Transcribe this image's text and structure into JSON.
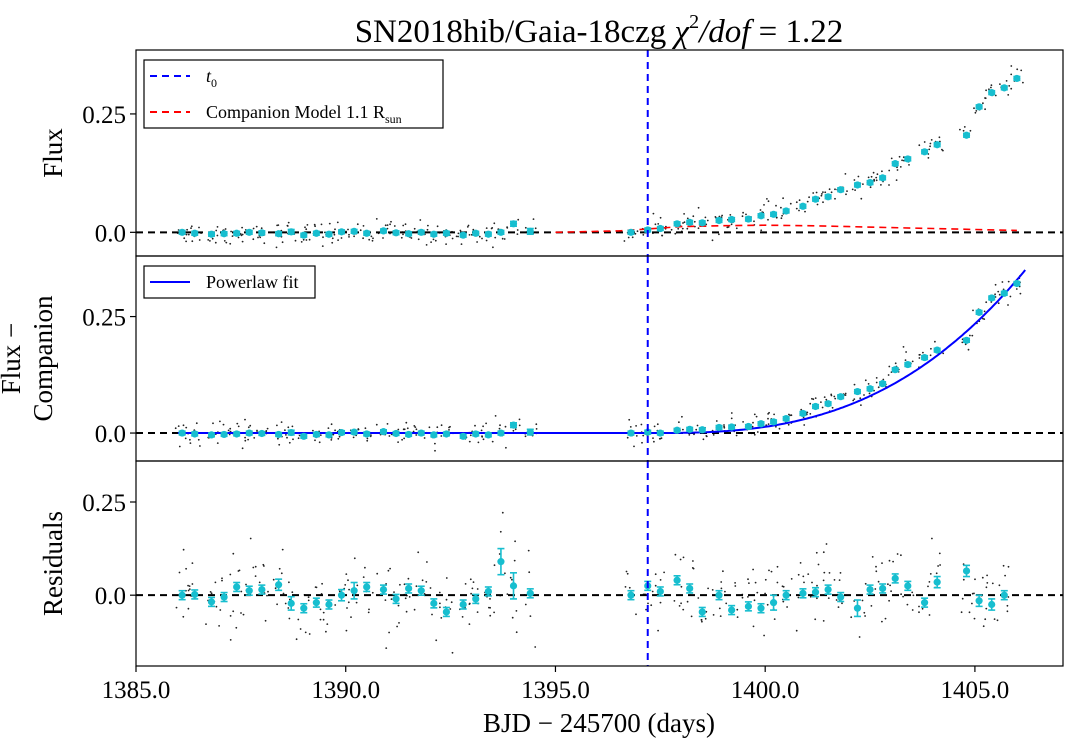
{
  "chart_data": {
    "type": "scatter",
    "title_main": "SN2018hib/Gaia-18czg  ",
    "title_chi": "χ",
    "title_sq": "2",
    "title_dof": "/dof",
    "title_eq": " = 1.22",
    "xlabel": "BJD − 245700 (days)",
    "xlim": [
      1385.0,
      1407.1
    ],
    "xticks": [
      1385.0,
      1390.0,
      1395.0,
      1400.0,
      1405.0
    ],
    "xtick_labels": [
      "1385.0",
      "1390.0",
      "1395.0",
      "1400.0",
      "1405.0"
    ],
    "t0": 1397.2,
    "panels": [
      {
        "id": "flux",
        "ylabel_lines": [
          "Flux"
        ],
        "ylim": [
          -0.05,
          0.385
        ],
        "yticks": [
          0.0,
          0.25
        ],
        "ytick_labels": [
          "0.0",
          "0.25"
        ],
        "legend": {
          "placement": "upper-left",
          "entries": [
            {
              "label": "t",
              "sub": "0",
              "color": "#0000ff",
              "style": "dashed"
            },
            {
              "label": "Companion Model  1.1  R",
              "sub": "sun",
              "color": "#ff0000",
              "style": "dashed"
            }
          ]
        },
        "binned": {
          "x": [
            1386.1,
            1386.4,
            1386.8,
            1387.1,
            1387.4,
            1387.7,
            1388.0,
            1388.4,
            1388.7,
            1389.0,
            1389.3,
            1389.6,
            1389.9,
            1390.2,
            1390.5,
            1390.9,
            1391.2,
            1391.5,
            1391.8,
            1392.1,
            1392.4,
            1392.8,
            1393.1,
            1393.4,
            1393.7,
            1394.0,
            1394.4,
            1396.8,
            1397.2,
            1397.5,
            1397.9,
            1398.2,
            1398.5,
            1398.9,
            1399.2,
            1399.6,
            1399.9,
            1400.2,
            1400.5,
            1400.9,
            1401.2,
            1401.5,
            1401.8,
            1402.2,
            1402.5,
            1402.8,
            1403.1,
            1403.4,
            1403.8,
            1404.1,
            1404.8,
            1405.1,
            1405.4,
            1405.7,
            1406.0
          ],
          "y": [
            0.0,
            -0.002,
            -0.004,
            -0.003,
            -0.002,
            0.0,
            -0.001,
            -0.003,
            0.001,
            -0.006,
            -0.002,
            -0.004,
            0.001,
            0.002,
            -0.002,
            0.003,
            -0.001,
            -0.003,
            0.0,
            -0.004,
            -0.002,
            -0.006,
            -0.002,
            -0.004,
            0.0,
            0.018,
            0.002,
            0.0,
            0.005,
            0.008,
            0.018,
            0.021,
            0.02,
            0.025,
            0.027,
            0.028,
            0.035,
            0.038,
            0.045,
            0.055,
            0.07,
            0.075,
            0.09,
            0.1,
            0.105,
            0.115,
            0.145,
            0.155,
            0.17,
            0.185,
            0.205,
            0.265,
            0.295,
            0.305,
            0.325
          ],
          "err": [
            0.004,
            0.004,
            0.004,
            0.004,
            0.004,
            0.004,
            0.004,
            0.004,
            0.005,
            0.004,
            0.004,
            0.004,
            0.004,
            0.004,
            0.004,
            0.004,
            0.004,
            0.004,
            0.004,
            0.004,
            0.004,
            0.004,
            0.004,
            0.004,
            0.004,
            0.005,
            0.006,
            0.004,
            0.004,
            0.004,
            0.004,
            0.004,
            0.004,
            0.004,
            0.004,
            0.004,
            0.004,
            0.004,
            0.004,
            0.004,
            0.004,
            0.004,
            0.004,
            0.004,
            0.004,
            0.004,
            0.004,
            0.004,
            0.004,
            0.004,
            0.004,
            0.004,
            0.004,
            0.004,
            0.004
          ]
        },
        "companion_model": {
          "x": [
            1395.0,
            1396.5,
            1397.2,
            1398.0,
            1399.0,
            1400.0,
            1401.0,
            1402.0,
            1403.0,
            1404.0,
            1405.0,
            1406.0
          ],
          "y": [
            0.0,
            0.003,
            0.007,
            0.012,
            0.014,
            0.015,
            0.014,
            0.012,
            0.01,
            0.008,
            0.006,
            0.004
          ]
        }
      },
      {
        "id": "flux_minus_companion",
        "ylabel_lines": [
          "Flux −",
          "Companion"
        ],
        "ylim": [
          -0.06,
          0.38
        ],
        "yticks": [
          0.0,
          0.25
        ],
        "ytick_labels": [
          "0.0",
          "0.25"
        ],
        "legend": {
          "placement": "upper-left",
          "entries": [
            {
              "label": "Powerlaw fit",
              "color": "#0000ff",
              "style": "solid"
            }
          ]
        },
        "binned": {
          "x": [
            1386.1,
            1386.4,
            1386.8,
            1387.1,
            1387.4,
            1387.7,
            1388.0,
            1388.4,
            1388.7,
            1389.0,
            1389.3,
            1389.6,
            1389.9,
            1390.2,
            1390.5,
            1390.9,
            1391.2,
            1391.5,
            1391.8,
            1392.1,
            1392.4,
            1392.8,
            1393.1,
            1393.4,
            1393.7,
            1394.0,
            1394.4,
            1396.8,
            1397.2,
            1397.5,
            1397.9,
            1398.2,
            1398.5,
            1398.9,
            1399.2,
            1399.6,
            1399.9,
            1400.2,
            1400.5,
            1400.9,
            1401.2,
            1401.5,
            1401.8,
            1402.2,
            1402.5,
            1402.8,
            1403.1,
            1403.4,
            1403.8,
            1404.1,
            1404.8,
            1405.1,
            1405.4,
            1405.7,
            1406.0
          ],
          "y": [
            0.0,
            -0.002,
            -0.004,
            -0.003,
            -0.002,
            0.0,
            -0.001,
            -0.003,
            0.001,
            -0.007,
            -0.003,
            -0.004,
            0.001,
            0.002,
            -0.002,
            0.003,
            -0.001,
            -0.003,
            0.0,
            -0.004,
            -0.002,
            -0.007,
            -0.002,
            -0.004,
            0.0,
            0.017,
            0.002,
            0.0,
            0.002,
            0.0,
            0.006,
            0.008,
            0.007,
            0.012,
            0.013,
            0.014,
            0.02,
            0.024,
            0.031,
            0.042,
            0.057,
            0.063,
            0.078,
            0.089,
            0.095,
            0.106,
            0.136,
            0.147,
            0.162,
            0.178,
            0.199,
            0.259,
            0.29,
            0.3,
            0.321
          ],
          "err": [
            0.004,
            0.004,
            0.004,
            0.004,
            0.004,
            0.004,
            0.004,
            0.004,
            0.005,
            0.004,
            0.004,
            0.004,
            0.004,
            0.004,
            0.004,
            0.004,
            0.004,
            0.004,
            0.004,
            0.004,
            0.004,
            0.004,
            0.004,
            0.004,
            0.004,
            0.005,
            0.006,
            0.004,
            0.004,
            0.004,
            0.004,
            0.004,
            0.004,
            0.004,
            0.004,
            0.004,
            0.004,
            0.004,
            0.004,
            0.004,
            0.004,
            0.004,
            0.004,
            0.004,
            0.004,
            0.004,
            0.004,
            0.004,
            0.004,
            0.004,
            0.004,
            0.004,
            0.004,
            0.004,
            0.004
          ]
        },
        "powerlaw_fit": {
          "t0": 1397.2,
          "amplitude": 0.35,
          "end": 1406.2,
          "exponent": 2.8,
          "start": 1386.0
        }
      },
      {
        "id": "residuals",
        "ylabel_lines": [
          "Residuals"
        ],
        "ylim": [
          -0.19,
          0.36
        ],
        "yticks": [
          0.0,
          0.25
        ],
        "ytick_labels": [
          "0.0",
          "0.25"
        ],
        "binned": {
          "x": [
            1386.1,
            1386.4,
            1386.8,
            1387.1,
            1387.4,
            1387.7,
            1388.0,
            1388.4,
            1388.7,
            1389.0,
            1389.3,
            1389.6,
            1389.9,
            1390.2,
            1390.5,
            1390.9,
            1391.2,
            1391.5,
            1391.8,
            1392.1,
            1392.4,
            1392.8,
            1393.1,
            1393.4,
            1393.7,
            1394.0,
            1394.4,
            1396.8,
            1397.2,
            1397.5,
            1397.9,
            1398.2,
            1398.5,
            1398.9,
            1399.2,
            1399.6,
            1399.9,
            1400.2,
            1400.5,
            1400.9,
            1401.2,
            1401.5,
            1401.8,
            1402.2,
            1402.5,
            1402.8,
            1403.1,
            1403.4,
            1403.8,
            1404.1,
            1404.8,
            1405.1,
            1405.4,
            1405.7
          ],
          "y": [
            0.0,
            0.002,
            -0.018,
            -0.005,
            0.022,
            0.012,
            0.015,
            0.028,
            -0.022,
            -0.035,
            -0.02,
            -0.025,
            0.0,
            0.012,
            0.022,
            0.015,
            -0.01,
            0.018,
            0.012,
            -0.022,
            -0.045,
            -0.025,
            -0.01,
            0.01,
            0.09,
            0.025,
            0.005,
            0.0,
            0.025,
            0.01,
            0.04,
            0.018,
            -0.045,
            0.0,
            -0.04,
            -0.03,
            -0.035,
            -0.02,
            0.0,
            0.005,
            0.008,
            0.015,
            -0.005,
            -0.035,
            0.015,
            0.018,
            0.045,
            0.025,
            -0.02,
            0.035,
            0.065,
            -0.015,
            -0.025,
            0.0
          ],
          "err": [
            0.012,
            0.012,
            0.012,
            0.012,
            0.012,
            0.012,
            0.012,
            0.015,
            0.018,
            0.012,
            0.012,
            0.012,
            0.015,
            0.022,
            0.012,
            0.012,
            0.012,
            0.012,
            0.012,
            0.012,
            0.012,
            0.012,
            0.012,
            0.012,
            0.035,
            0.035,
            0.012,
            0.012,
            0.012,
            0.012,
            0.012,
            0.012,
            0.012,
            0.012,
            0.012,
            0.012,
            0.012,
            0.02,
            0.012,
            0.012,
            0.012,
            0.012,
            0.012,
            0.022,
            0.012,
            0.012,
            0.012,
            0.012,
            0.012,
            0.015,
            0.015,
            0.015,
            0.015,
            0.012
          ]
        }
      }
    ],
    "raw_points_note": "Unbinned photometry shown as small black dots around each binned series"
  }
}
